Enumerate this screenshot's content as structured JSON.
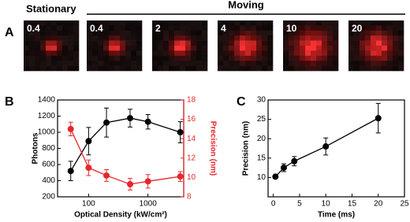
{
  "chart_data": [
    {
      "panel": "A",
      "type": "image",
      "header": [
        "Stationary",
        "Moving"
      ],
      "labels": [
        "0.4",
        "0.4",
        "2",
        "4",
        "10",
        "20"
      ]
    },
    {
      "panel": "B",
      "type": "line",
      "xlabel": "Optical Density (kW/cm²)",
      "ylabel": "Photons",
      "y2label": "Precision (nm)",
      "x": [
        50,
        100,
        200,
        500,
        1000,
        3500
      ],
      "xlim": [
        30,
        4000
      ],
      "xticks": [
        100,
        1000
      ],
      "log_x": true,
      "ylim": [
        200,
        1400
      ],
      "yticks": [
        200,
        400,
        600,
        800,
        1000,
        1200,
        1400
      ],
      "y2lim": [
        8,
        18
      ],
      "y2ticks": [
        8,
        10,
        12,
        14,
        16,
        18
      ],
      "y2color": "#e8262b",
      "series": [
        {
          "color": "#000000",
          "values": [
            520,
            890,
            1120,
            1175,
            1130,
            1000
          ],
          "errors": [
            120,
            170,
            180,
            110,
            90,
            130
          ]
        },
        {
          "color": "#e8262b",
          "axis": "y2",
          "values": [
            15,
            11,
            10.2,
            9.3,
            9.6,
            10.1
          ],
          "errors": [
            0.7,
            0.8,
            0.6,
            0.6,
            0.7,
            0.5
          ]
        }
      ]
    },
    {
      "panel": "C",
      "type": "line",
      "xlabel": "Time (ms)",
      "ylabel": "Precision (nm)",
      "x": [
        0.4,
        2,
        4,
        10,
        20
      ],
      "xlim": [
        -1,
        25
      ],
      "xticks": [
        0,
        5,
        10,
        15,
        20,
        25
      ],
      "ylim": [
        5,
        30
      ],
      "yticks": [
        10,
        15,
        20,
        25,
        30
      ],
      "series": [
        {
          "color": "#000000",
          "values": [
            10.2,
            12.5,
            14.2,
            18,
            25.3
          ],
          "errors": [
            0.4,
            1,
            1.2,
            2.2,
            3.8
          ]
        }
      ]
    }
  ]
}
